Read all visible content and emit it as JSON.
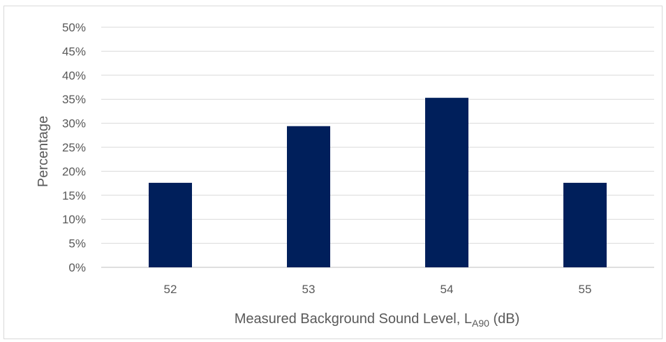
{
  "chart_data": {
    "type": "bar",
    "categories": [
      "52",
      "53",
      "54",
      "55"
    ],
    "values": [
      17.6,
      29.4,
      35.3,
      17.6
    ],
    "value_unit": "%",
    "ylim": [
      0,
      50
    ],
    "ytick_step": 5,
    "ytick_labels": [
      "0%",
      "5%",
      "10%",
      "15%",
      "20%",
      "25%",
      "30%",
      "35%",
      "40%",
      "45%",
      "50%"
    ],
    "ylabel": "Percentage",
    "xlabel": {
      "prefix": "Measured Background Sound Level, L",
      "subscript": "A90",
      "suffix": " (dB)"
    },
    "grid": true,
    "legend": "none",
    "colors": {
      "bar": "#001f5b",
      "grid": "#d9d9d9",
      "axis": "#bfbfbf",
      "text": "#595959"
    }
  }
}
